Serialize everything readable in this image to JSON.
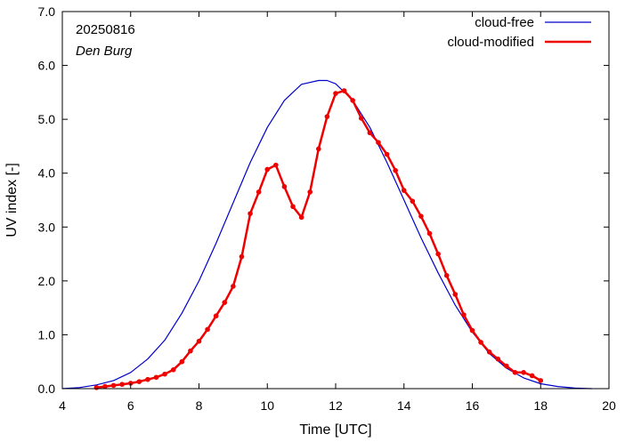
{
  "chart_data": {
    "type": "line",
    "annotations": {
      "date": "20250816",
      "location": "Den Burg"
    },
    "xlabel": "Time  [UTC]",
    "ylabel": "UV index  [-]",
    "xlim": [
      4,
      20
    ],
    "ylim": [
      0,
      7
    ],
    "x_ticks": [
      4,
      6,
      8,
      10,
      12,
      14,
      16,
      18,
      20
    ],
    "y_ticks": [
      "0.0",
      "1.0",
      "2.0",
      "3.0",
      "4.0",
      "5.0",
      "6.0",
      "7.0"
    ],
    "grid": false,
    "legend_position": "top-right",
    "series": [
      {
        "name": "cloud-free",
        "color": "#0000cc",
        "style": "line",
        "x": [
          4.0,
          4.5,
          5.0,
          5.5,
          6.0,
          6.5,
          7.0,
          7.5,
          8.0,
          8.5,
          9.0,
          9.5,
          10.0,
          10.5,
          11.0,
          11.5,
          11.75,
          12.0,
          12.5,
          13.0,
          13.5,
          14.0,
          14.5,
          15.0,
          15.5,
          16.0,
          16.5,
          17.0,
          17.5,
          18.0,
          18.5,
          19.0,
          19.5
        ],
        "y": [
          0.0,
          0.02,
          0.07,
          0.15,
          0.3,
          0.55,
          0.9,
          1.4,
          2.0,
          2.7,
          3.45,
          4.2,
          4.85,
          5.35,
          5.65,
          5.72,
          5.72,
          5.66,
          5.35,
          4.85,
          4.2,
          3.5,
          2.8,
          2.15,
          1.55,
          1.05,
          0.65,
          0.38,
          0.2,
          0.09,
          0.04,
          0.01,
          0.0
        ]
      },
      {
        "name": "cloud-modified",
        "color": "#ee0000",
        "style": "line+markers",
        "x": [
          5.0,
          5.25,
          5.5,
          5.75,
          6.0,
          6.25,
          6.5,
          6.75,
          7.0,
          7.25,
          7.5,
          7.75,
          8.0,
          8.25,
          8.5,
          8.75,
          9.0,
          9.25,
          9.5,
          9.75,
          10.0,
          10.25,
          10.5,
          10.75,
          11.0,
          11.25,
          11.5,
          11.75,
          12.0,
          12.25,
          12.5,
          12.75,
          13.0,
          13.25,
          13.5,
          13.75,
          14.0,
          14.25,
          14.5,
          14.75,
          15.0,
          15.25,
          15.5,
          15.75,
          16.0,
          16.25,
          16.5,
          16.75,
          17.0,
          17.25,
          17.5,
          17.75,
          18.0
        ],
        "y": [
          0.02,
          0.04,
          0.06,
          0.08,
          0.1,
          0.13,
          0.17,
          0.21,
          0.27,
          0.35,
          0.5,
          0.7,
          0.88,
          1.1,
          1.35,
          1.6,
          1.9,
          2.45,
          3.25,
          3.65,
          4.07,
          4.15,
          3.75,
          3.38,
          3.18,
          3.65,
          4.45,
          5.05,
          5.48,
          5.53,
          5.35,
          5.02,
          4.75,
          4.57,
          4.35,
          4.05,
          3.68,
          3.48,
          3.2,
          2.88,
          2.5,
          2.1,
          1.75,
          1.37,
          1.08,
          0.86,
          0.68,
          0.55,
          0.42,
          0.3,
          0.3,
          0.24,
          0.15
        ]
      }
    ]
  }
}
